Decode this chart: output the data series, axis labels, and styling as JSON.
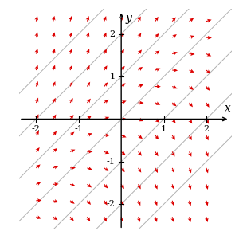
{
  "title": "",
  "xlim": [
    -2.4,
    2.6
  ],
  "ylim": [
    -2.6,
    2.6
  ],
  "xmin": -2.0,
  "xmax": 2.0,
  "ymin": -2.3,
  "ymax": 2.3,
  "isocline_values": [
    -3,
    -2,
    -1,
    0,
    1,
    2,
    3
  ],
  "isocline_color": "#b0b0b0",
  "arrow_color": "#dd0000",
  "grid_nx": 11,
  "grid_ny": 13,
  "arrow_scale": 0.13,
  "figsize": [
    3.0,
    3.05
  ],
  "dpi": 100,
  "axis_color": "#000000",
  "label_x": "x",
  "label_y": "y",
  "tick_values": [
    -2,
    -1,
    1,
    2
  ]
}
